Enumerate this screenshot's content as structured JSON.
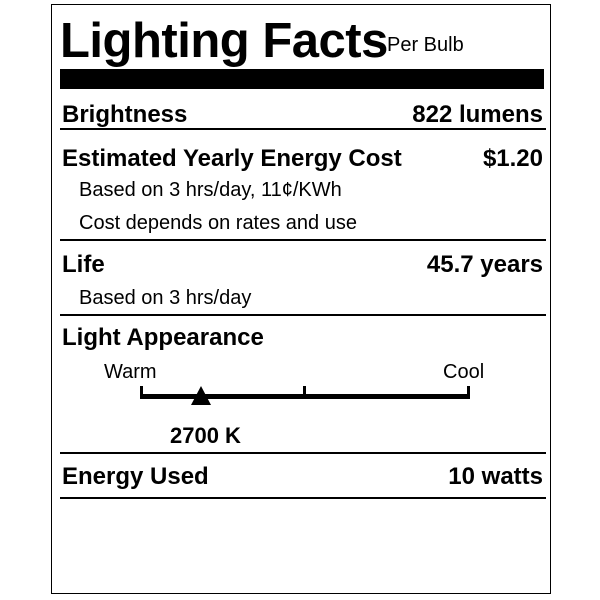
{
  "header": {
    "title": "Lighting Facts",
    "subtitle": "Per Bulb"
  },
  "brightness": {
    "label": "Brightness",
    "value": "822 lumens"
  },
  "cost": {
    "label": "Estimated Yearly Energy Cost",
    "value": "$1.20",
    "note1": "Based on 3 hrs/day, 11¢/KWh",
    "note2": "Cost depends on rates and use"
  },
  "life": {
    "label": "Life",
    "value": "45.7 years",
    "note": "Based on 3 hrs/day"
  },
  "appearance": {
    "label": "Light Appearance",
    "warm": "Warm",
    "cool": "Cool",
    "value": "2700 K",
    "marker_fraction": 0.185
  },
  "energy": {
    "label": "Energy Used",
    "value": "10 watts"
  }
}
